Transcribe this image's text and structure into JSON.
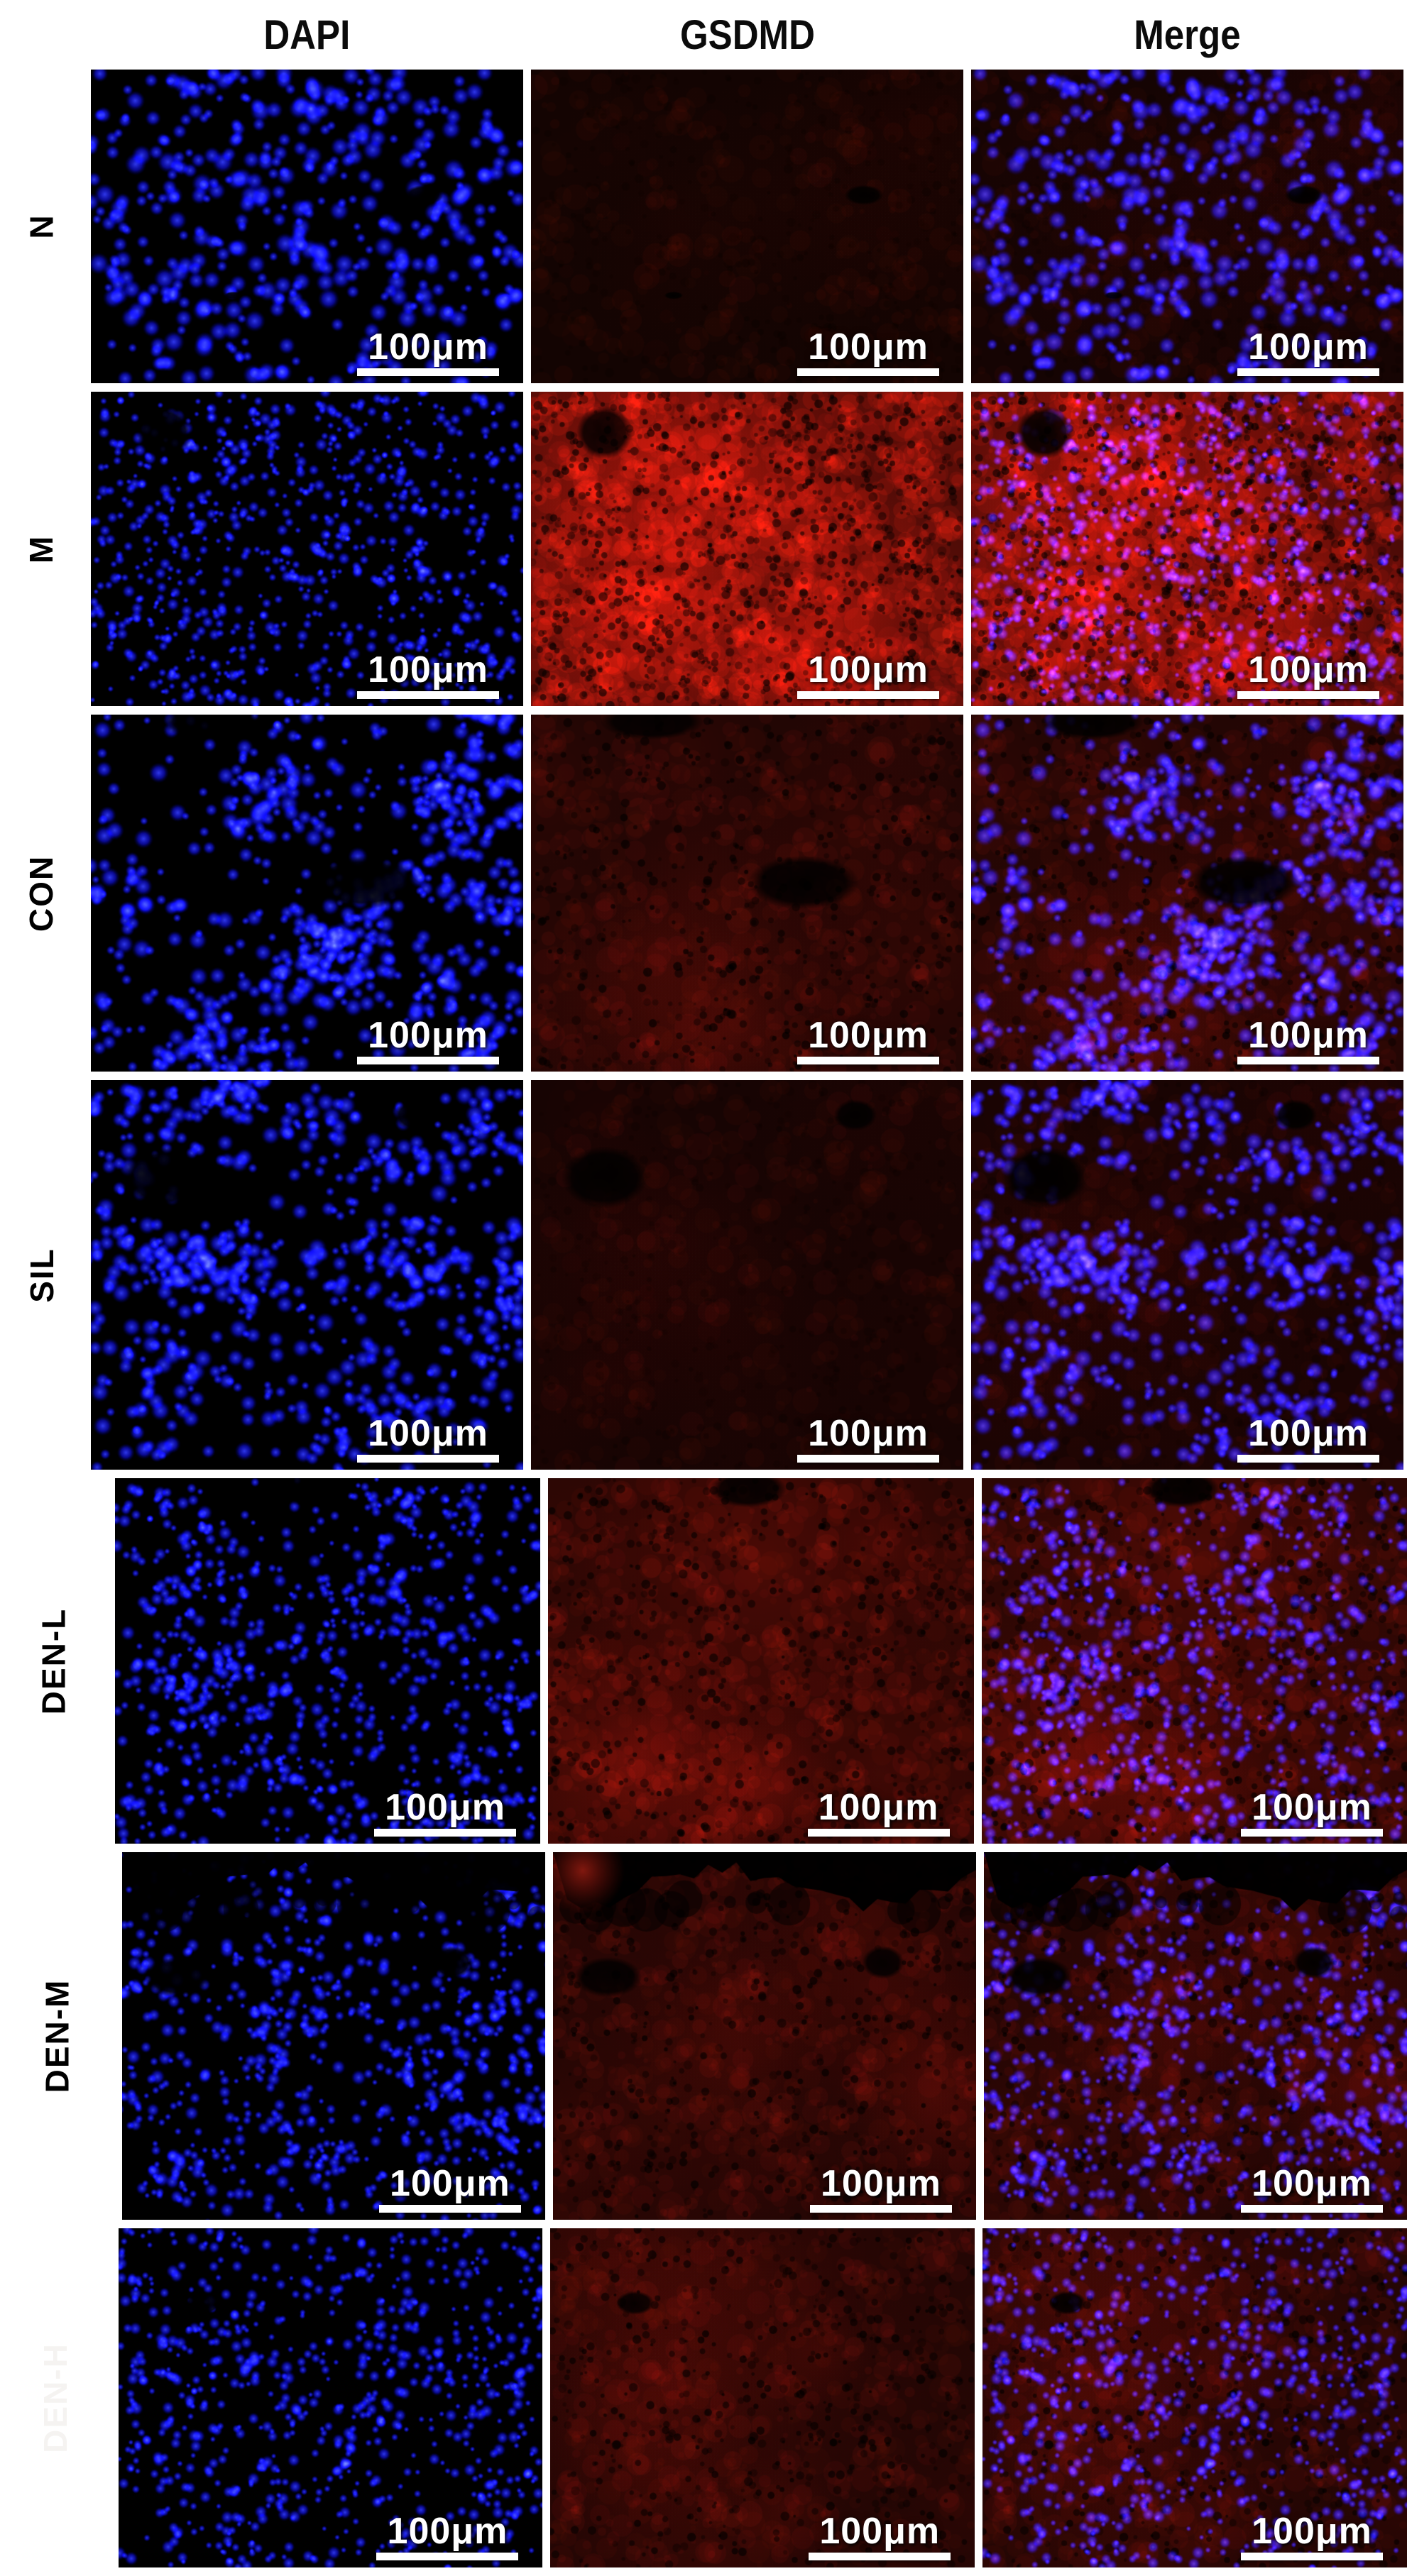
{
  "columns": [
    {
      "label": "DAPI"
    },
    {
      "label": "GSDMD"
    },
    {
      "label": "Merge"
    }
  ],
  "scale_bar": {
    "label": "100μm"
  },
  "colors": {
    "page_background": "#ffffff",
    "panel_background": "#000000",
    "dapi_blue": "#2222f0",
    "gsdmd_red": "#a01812",
    "scale_bar": "#ffffff",
    "header_text": "#0b0b0b",
    "row_label_text": "#000000",
    "den_h_label_text": "#f5f3f1"
  },
  "rows": [
    {
      "label": "N",
      "label_color": "#000000",
      "appearance": {
        "nuclei_density": 0.55,
        "nuclei_radius": 7,
        "clumping": 0.15,
        "gsdmd_intensity": 0.07,
        "top_band": false,
        "voids": [
          {
            "x": 0.77,
            "y": 0.4,
            "rx": 0.045,
            "ry": 0.032
          },
          {
            "x": 0.33,
            "y": 0.72,
            "rx": 0.022,
            "ry": 0.012
          }
        ]
      }
    },
    {
      "label": "M",
      "label_color": "#000000",
      "appearance": {
        "nuclei_density": 0.95,
        "nuclei_radius": 4.4,
        "clumping": 0.15,
        "gsdmd_intensity": 0.85,
        "top_band": false,
        "red_hotspot": {
          "x": 0.45,
          "y": 0.55,
          "r": 0.5,
          "a": 0.2
        },
        "voids": [
          {
            "x": 0.17,
            "y": 0.13,
            "rx": 0.065,
            "ry": 0.085
          }
        ]
      }
    },
    {
      "label": "CON",
      "label_color": "#000000",
      "appearance": {
        "nuclei_density": 0.75,
        "nuclei_radius": 6.5,
        "clumping": 0.65,
        "gsdmd_intensity": 0.26,
        "top_band": false,
        "voids": [
          {
            "x": 0.63,
            "y": 0.47,
            "rx": 0.13,
            "ry": 0.075
          },
          {
            "x": 0.28,
            "y": 0.02,
            "rx": 0.12,
            "ry": 0.05
          }
        ]
      }
    },
    {
      "label": "SIL",
      "label_color": "#000000",
      "appearance": {
        "nuclei_density": 0.7,
        "nuclei_radius": 6.5,
        "clumping": 0.6,
        "gsdmd_intensity": 0.12,
        "top_band": false,
        "voids": [
          {
            "x": 0.17,
            "y": 0.25,
            "rx": 0.1,
            "ry": 0.08
          },
          {
            "x": 0.75,
            "y": 0.09,
            "rx": 0.05,
            "ry": 0.04
          }
        ]
      }
    },
    {
      "label": "DEN-L",
      "label_color": "#000000",
      "appearance": {
        "nuclei_density": 0.85,
        "nuclei_radius": 5,
        "clumping": 0.35,
        "gsdmd_intensity": 0.4,
        "top_band": false,
        "red_hotspot": {
          "x": 0.5,
          "y": 0.22,
          "r": 0.45,
          "a": 0.15
        },
        "voids": [
          {
            "x": 0.47,
            "y": 0.03,
            "rx": 0.09,
            "ry": 0.05
          }
        ]
      }
    },
    {
      "label": "DEN-M",
      "label_color": "#000000",
      "appearance": {
        "nuclei_density": 0.8,
        "nuclei_radius": 5,
        "clumping": 0.5,
        "gsdmd_intensity": 0.3,
        "top_band": true,
        "bright_patch": {
          "x": 0.07,
          "y": 0.05,
          "r": 0.1,
          "a": 0.55
        },
        "voids": [
          {
            "x": 0.13,
            "y": 0.34,
            "rx": 0.08,
            "ry": 0.055
          },
          {
            "x": 0.78,
            "y": 0.3,
            "rx": 0.05,
            "ry": 0.045
          }
        ]
      }
    },
    {
      "label": "DEN-H",
      "label_color": "#f5f3f1",
      "appearance": {
        "nuclei_density": 0.85,
        "nuclei_radius": 4.5,
        "clumping": 0.3,
        "gsdmd_intensity": 0.28,
        "top_band": false,
        "voids": [
          {
            "x": 0.2,
            "y": 0.22,
            "rx": 0.045,
            "ry": 0.035
          }
        ]
      }
    }
  ]
}
